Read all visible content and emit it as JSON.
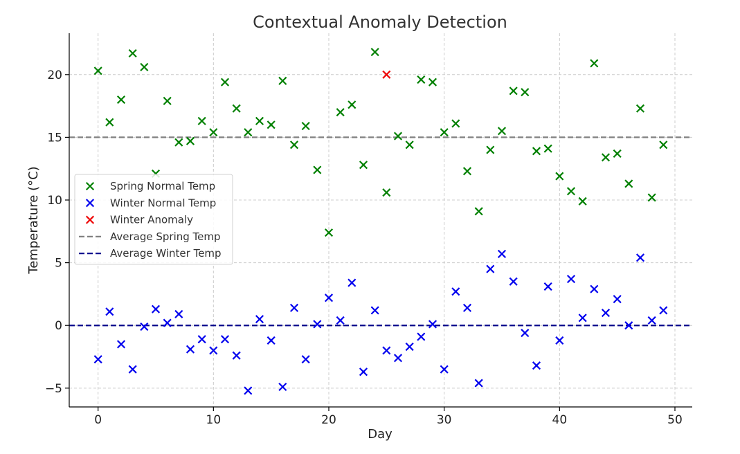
{
  "chart_data": {
    "type": "scatter",
    "title": "Contextual Anomaly Detection",
    "xlabel": "Day",
    "ylabel": "Temperature (°C)",
    "xlim": [
      -2.5,
      51.5
    ],
    "ylim": [
      -6.5,
      23.3
    ],
    "xticks": [
      0,
      10,
      20,
      30,
      40,
      50
    ],
    "yticks": [
      -5,
      0,
      5,
      10,
      15,
      20
    ],
    "ytick_labels": [
      "−5",
      "0",
      "5",
      "10",
      "15",
      "20"
    ],
    "grid": true,
    "legend_position": "center-left",
    "series": [
      {
        "name": "Spring Normal Temp",
        "marker": "x",
        "color": "#008000",
        "x": [
          0,
          1,
          2,
          3,
          4,
          5,
          6,
          7,
          8,
          9,
          10,
          11,
          12,
          13,
          14,
          15,
          16,
          17,
          18,
          19,
          20,
          21,
          22,
          23,
          24,
          25,
          26,
          27,
          28,
          29,
          30,
          31,
          32,
          33,
          34,
          35,
          36,
          37,
          38,
          39,
          40,
          41,
          42,
          43,
          44,
          45,
          46,
          47,
          48,
          49
        ],
        "y": [
          20.3,
          16.2,
          18.0,
          21.7,
          20.6,
          12.1,
          17.9,
          14.6,
          14.7,
          16.3,
          15.4,
          19.4,
          17.3,
          15.4,
          16.3,
          16.0,
          19.5,
          14.4,
          15.9,
          12.4,
          7.4,
          17.0,
          17.6,
          12.8,
          21.8,
          10.6,
          15.1,
          14.4,
          19.6,
          19.4,
          15.4,
          16.1,
          12.3,
          9.1,
          14.0,
          15.5,
          18.7,
          18.6,
          13.9,
          14.1,
          11.9,
          10.7,
          9.9,
          20.9,
          13.4,
          13.7,
          11.3,
          17.3,
          10.2,
          14.4
        ]
      },
      {
        "name": "Winter Normal Temp",
        "marker": "x",
        "color": "#0000ee",
        "x": [
          0,
          1,
          2,
          3,
          4,
          5,
          6,
          7,
          8,
          9,
          10,
          11,
          12,
          13,
          14,
          15,
          16,
          17,
          18,
          19,
          20,
          21,
          22,
          23,
          24,
          25,
          26,
          27,
          28,
          29,
          30,
          31,
          32,
          33,
          34,
          35,
          36,
          37,
          38,
          39,
          40,
          41,
          42,
          43,
          44,
          45,
          46,
          47,
          48,
          49
        ],
        "y": [
          -2.7,
          1.1,
          -1.5,
          -3.5,
          -0.1,
          1.3,
          0.2,
          0.9,
          -1.9,
          -1.1,
          -2.0,
          -1.1,
          -2.4,
          -5.2,
          0.5,
          -1.2,
          -4.9,
          1.4,
          -2.7,
          0.1,
          2.2,
          0.4,
          3.4,
          -3.7,
          1.2,
          -2.0,
          -2.6,
          -1.7,
          -0.9,
          0.1,
          -3.5,
          2.7,
          1.4,
          -4.6,
          4.5,
          5.7,
          3.5,
          -0.6,
          -3.2,
          3.1,
          -1.2,
          3.7,
          0.6,
          2.9,
          1.0,
          2.1,
          0.0,
          5.4,
          0.4,
          1.2
        ]
      },
      {
        "name": "Winter Anomaly",
        "marker": "x",
        "color": "#ee0000",
        "x": [
          25
        ],
        "y": [
          20.0
        ]
      },
      {
        "name": "Average Spring Temp",
        "kind": "hline",
        "value": 15,
        "color": "#808080",
        "dash": "dashed"
      },
      {
        "name": "Average Winter Temp",
        "kind": "hline",
        "value": 0,
        "color": "#00008b",
        "dash": "dashed"
      }
    ]
  }
}
